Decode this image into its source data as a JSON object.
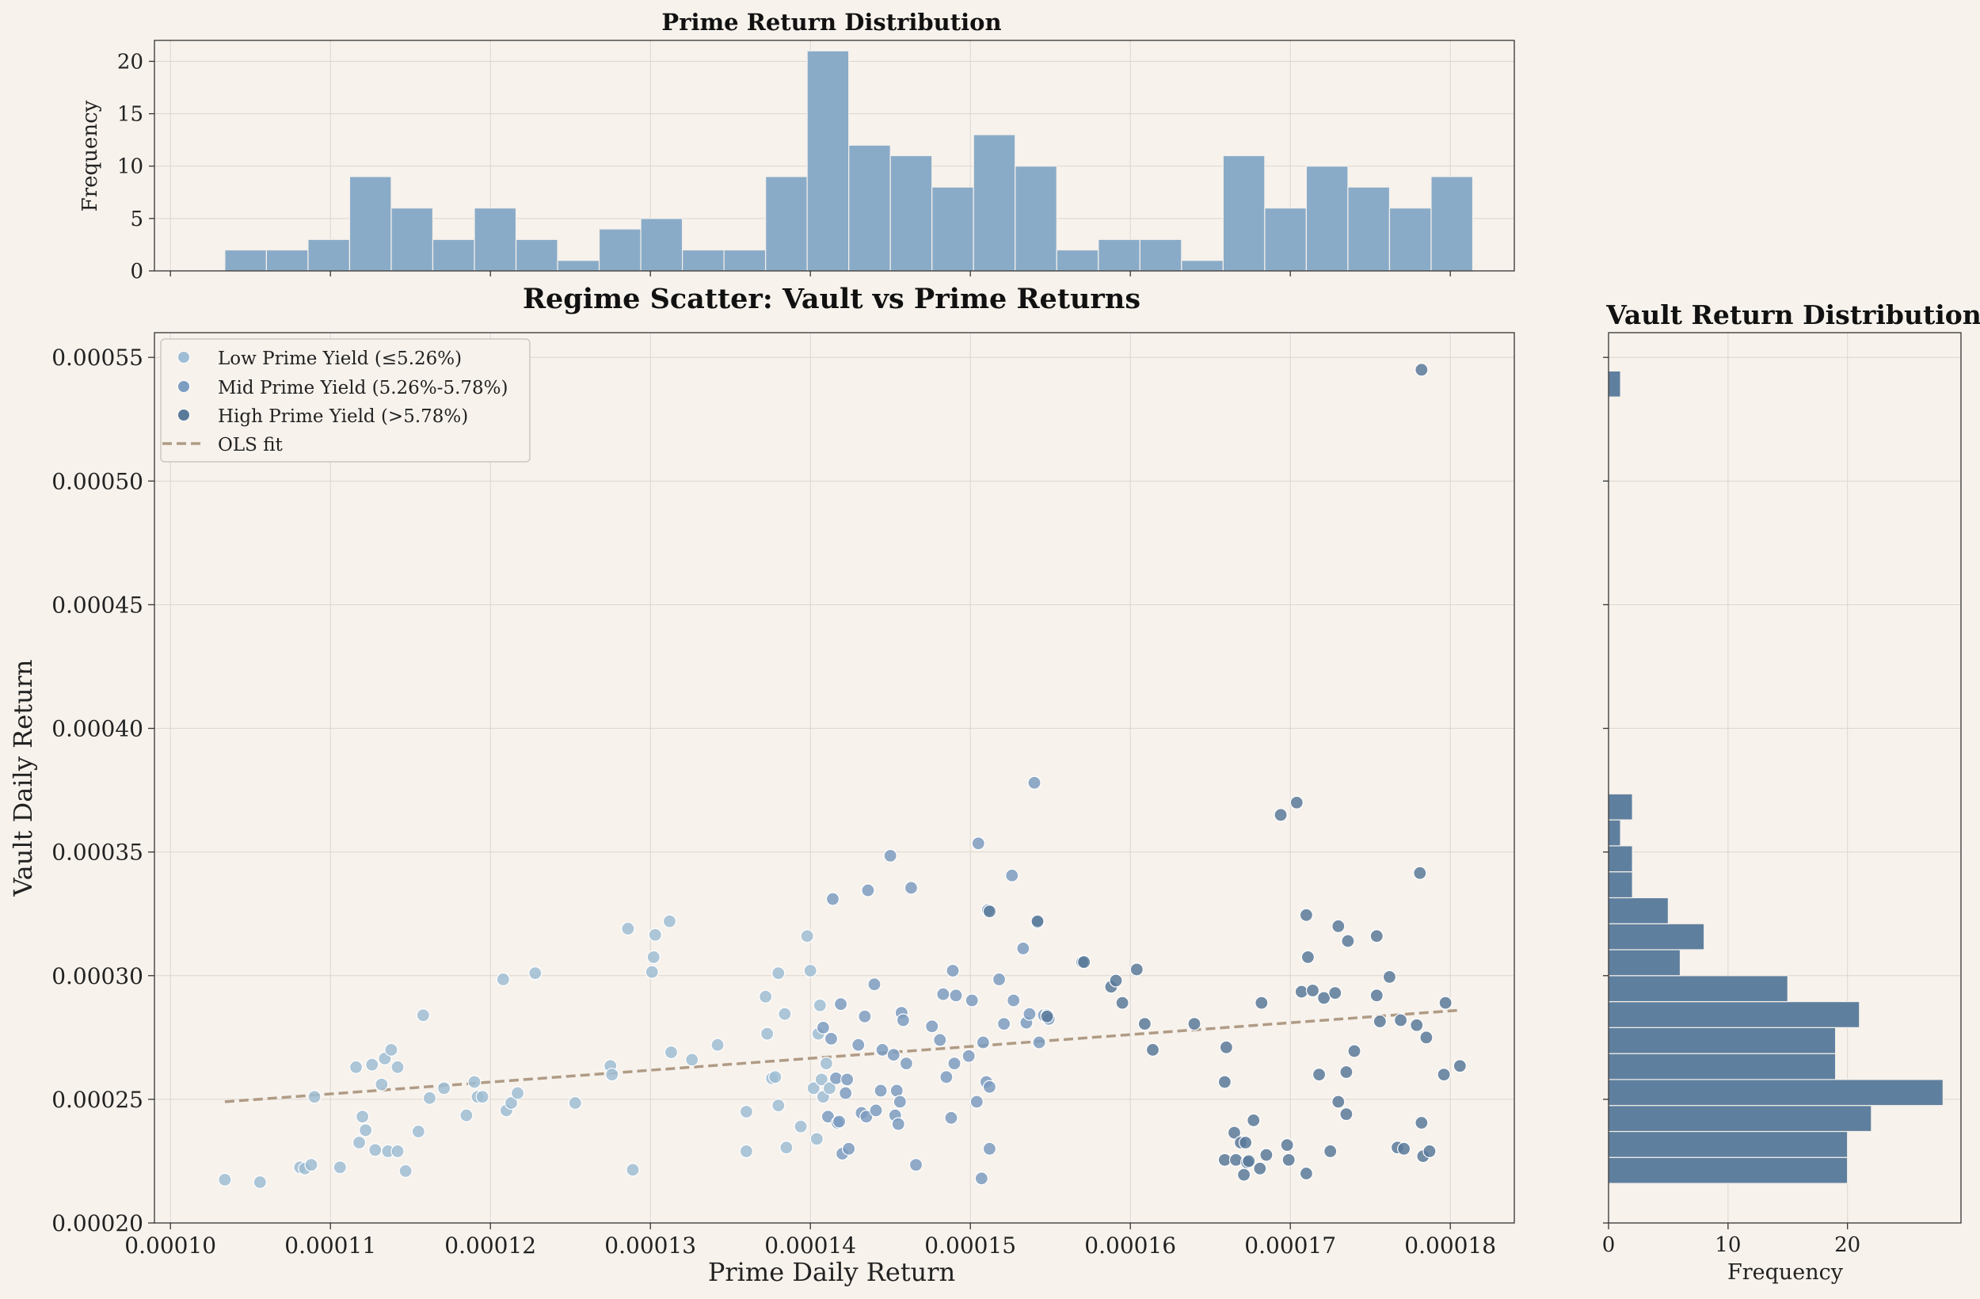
{
  "colors": {
    "background": "#f7f2ec",
    "hist_fill": "#8aabc8",
    "vault_hist_fill": "#5f7f9e",
    "low": "#9fbdd4",
    "mid": "#7c9cc0",
    "high": "#5a7a9a",
    "ols": "#b09b85",
    "grid": "#ddd6cf"
  },
  "chart_data": [
    {
      "type": "histogram",
      "id": "prime_hist",
      "title": "Prime Return Distribution",
      "xlabel": "",
      "ylabel": "Frequency",
      "xlim": [
        9.9e-05,
        0.000184
      ],
      "ylim": [
        0,
        22
      ],
      "yticks": [
        "0",
        "5",
        "10",
        "15",
        "20"
      ],
      "bin_start": 0.0001034,
      "bin_width": 2.6e-06,
      "counts": [
        2,
        2,
        3,
        9,
        6,
        3,
        6,
        3,
        1,
        4,
        5,
        2,
        2,
        9,
        21,
        12,
        11,
        8,
        13,
        10,
        2,
        3,
        3,
        1,
        11,
        6,
        10,
        8,
        6,
        9
      ]
    },
    {
      "type": "scatter",
      "id": "regime_scatter",
      "title": "Regime Scatter: Vault vs Prime Returns",
      "xlabel": "Prime Daily Return",
      "ylabel": "Vault Daily Return",
      "xlim": [
        9.9e-05,
        0.000184
      ],
      "ylim": [
        0.0002,
        0.00056
      ],
      "xticks": [
        "0.00010",
        "0.00011",
        "0.00012",
        "0.00013",
        "0.00014",
        "0.00015",
        "0.00016",
        "0.00017",
        "0.00018"
      ],
      "yticks": [
        "0.00020",
        "0.00025",
        "0.00030",
        "0.00035",
        "0.00040",
        "0.00045",
        "0.00050",
        "0.00055"
      ],
      "legend_position": "upper-left",
      "legend": [
        {
          "key": "low",
          "label": "Low Prime Yield (≤5.26%)"
        },
        {
          "key": "mid",
          "label": "Mid Prime Yield (5.26%-5.78%)"
        },
        {
          "key": "high",
          "label": "High Prime Yield (>5.78%)"
        },
        {
          "key": "ols",
          "label": "OLS fit"
        }
      ],
      "ols_fit": {
        "x": [
          0.0001034,
          0.0001805
        ],
        "y": [
          0.000249,
          0.000286
        ]
      },
      "series": [
        {
          "name": "Low Prime Yield (≤5.26%)",
          "key": "low",
          "points": [
            [
              0.0001034,
              0.0002175
            ],
            [
              0.0001056,
              0.0002165
            ],
            [
              0.0001081,
              0.0002225
            ],
            [
              0.0001084,
              0.000222
            ],
            [
              0.0001088,
              0.0002235
            ],
            [
              0.000109,
              0.000251
            ],
            [
              0.0001106,
              0.0002225
            ],
            [
              0.0001116,
              0.000263
            ],
            [
              0.0001118,
              0.0002325
            ],
            [
              0.000112,
              0.000243
            ],
            [
              0.0001122,
              0.0002375
            ],
            [
              0.0001126,
              0.000264
            ],
            [
              0.0001128,
              0.0002295
            ],
            [
              0.0001132,
              0.000256
            ],
            [
              0.0001134,
              0.0002665
            ],
            [
              0.0001136,
              0.000229
            ],
            [
              0.0001138,
              0.00027
            ],
            [
              0.0001142,
              0.000263
            ],
            [
              0.0001142,
              0.000229
            ],
            [
              0.0001147,
              0.000221
            ],
            [
              0.0001155,
              0.000237
            ],
            [
              0.0001158,
              0.000284
            ],
            [
              0.0001162,
              0.0002505
            ],
            [
              0.0001171,
              0.0002545
            ],
            [
              0.0001185,
              0.0002435
            ],
            [
              0.000119,
              0.000257
            ],
            [
              0.0001192,
              0.000251
            ],
            [
              0.0001195,
              0.000251
            ],
            [
              0.0001208,
              0.0002985
            ],
            [
              0.000121,
              0.0002455
            ],
            [
              0.0001213,
              0.0002485
            ],
            [
              0.0001217,
              0.0002525
            ],
            [
              0.0001228,
              0.000301
            ],
            [
              0.0001253,
              0.0002485
            ],
            [
              0.0001275,
              0.0002635
            ],
            [
              0.0001276,
              0.00026
            ],
            [
              0.0001286,
              0.000319
            ],
            [
              0.0001289,
              0.0002215
            ],
            [
              0.0001301,
              0.0003015
            ],
            [
              0.0001302,
              0.0003075
            ],
            [
              0.0001303,
              0.0003165
            ],
            [
              0.0001312,
              0.000322
            ],
            [
              0.0001313,
              0.000269
            ],
            [
              0.0001326,
              0.000266
            ],
            [
              0.0001342,
              0.000272
            ],
            [
              0.000136,
              0.000229
            ],
            [
              0.000136,
              0.000245
            ],
            [
              0.0001372,
              0.0002915
            ],
            [
              0.0001373,
              0.0002765
            ],
            [
              0.0001376,
              0.0002585
            ],
            [
              0.0001378,
              0.000259
            ],
            [
              0.000138,
              0.0002475
            ],
            [
              0.000138,
              0.000301
            ],
            [
              0.0001384,
              0.0002845
            ],
            [
              0.0001385,
              0.0002305
            ],
            [
              0.0001394,
              0.000239
            ],
            [
              0.0001398,
              0.000316
            ],
            [
              0.00014,
              0.000302
            ],
            [
              0.0001402,
              0.0002545
            ],
            [
              0.0001404,
              0.000234
            ],
            [
              0.0001405,
              0.0002765
            ],
            [
              0.0001406,
              0.000288
            ],
            [
              0.0001407,
              0.000258
            ],
            [
              0.0001408,
              0.000251
            ],
            [
              0.000141,
              0.0002645
            ],
            [
              0.0001412,
              0.0002545
            ]
          ]
        },
        {
          "name": "Mid Prime Yield (5.26%-5.78%)",
          "key": "mid",
          "points": [
            [
              0.0001408,
              0.000279
            ],
            [
              0.0001411,
              0.000243
            ],
            [
              0.0001413,
              0.0002745
            ],
            [
              0.0001414,
              0.000331
            ],
            [
              0.0001416,
              0.0002585
            ],
            [
              0.0001417,
              0.0002405
            ],
            [
              0.0001418,
              0.000241
            ],
            [
              0.0001419,
              0.0002885
            ],
            [
              0.000142,
              0.000228
            ],
            [
              0.0001422,
              0.0002525
            ],
            [
              0.0001423,
              0.000258
            ],
            [
              0.0001424,
              0.00023
            ],
            [
              0.000143,
              0.000272
            ],
            [
              0.0001432,
              0.0002445
            ],
            [
              0.0001434,
              0.0002835
            ],
            [
              0.0001435,
              0.000243
            ],
            [
              0.0001436,
              0.0003345
            ],
            [
              0.000144,
              0.0002965
            ],
            [
              0.0001441,
              0.0002455
            ],
            [
              0.0001444,
              0.0002535
            ],
            [
              0.0001445,
              0.00027
            ],
            [
              0.000145,
              0.0003485
            ],
            [
              0.0001452,
              0.000268
            ],
            [
              0.0001453,
              0.0002435
            ],
            [
              0.0001454,
              0.0002535
            ],
            [
              0.0001455,
              0.00024
            ],
            [
              0.0001456,
              0.000249
            ],
            [
              0.0001457,
              0.000285
            ],
            [
              0.0001458,
              0.000282
            ],
            [
              0.000146,
              0.0002645
            ],
            [
              0.0001463,
              0.0003355
            ],
            [
              0.0001466,
              0.0002235
            ],
            [
              0.0001476,
              0.0002795
            ],
            [
              0.0001481,
              0.000274
            ],
            [
              0.0001483,
              0.0002925
            ],
            [
              0.0001485,
              0.000259
            ],
            [
              0.0001488,
              0.0002425
            ],
            [
              0.0001489,
              0.000302
            ],
            [
              0.000149,
              0.0002645
            ],
            [
              0.0001491,
              0.000292
            ],
            [
              0.0001499,
              0.0002675
            ],
            [
              0.0001501,
              0.00029
            ],
            [
              0.0001504,
              0.000249
            ],
            [
              0.0001505,
              0.0003535
            ],
            [
              0.0001507,
              0.000218
            ],
            [
              0.0001508,
              0.000273
            ],
            [
              0.000151,
              0.000257
            ],
            [
              0.0001511,
              0.0003265
            ],
            [
              0.0001512,
              0.000255
            ],
            [
              0.0001512,
              0.00023
            ],
            [
              0.0001518,
              0.0002985
            ],
            [
              0.0001521,
              0.0002805
            ],
            [
              0.0001526,
              0.0003405
            ],
            [
              0.0001527,
              0.00029
            ],
            [
              0.0001533,
              0.000311
            ],
            [
              0.0001535,
              0.000281
            ],
            [
              0.0001537,
              0.0002845
            ],
            [
              0.000154,
              0.000378
            ],
            [
              0.0001542,
              0.0003215
            ],
            [
              0.0001543,
              0.000273
            ],
            [
              0.0001546,
              0.000284
            ],
            [
              0.0001548,
              0.000284
            ],
            [
              0.0001549,
              0.0002825
            ]
          ]
        },
        {
          "name": "High Prime Yield (>5.78%)",
          "key": "high",
          "points": [
            [
              0.0001512,
              0.000326
            ],
            [
              0.0001542,
              0.000322
            ],
            [
              0.0001548,
              0.0002835
            ],
            [
              0.000157,
              0.0003055
            ],
            [
              0.0001571,
              0.0003055
            ],
            [
              0.0001588,
              0.0002955
            ],
            [
              0.0001591,
              0.000298
            ],
            [
              0.0001595,
              0.000289
            ],
            [
              0.0001604,
              0.0003025
            ],
            [
              0.0001609,
              0.0002805
            ],
            [
              0.0001614,
              0.00027
            ],
            [
              0.000164,
              0.0002805
            ],
            [
              0.0001659,
              0.000257
            ],
            [
              0.0001659,
              0.0002255
            ],
            [
              0.000166,
              0.000271
            ],
            [
              0.0001665,
              0.0002365
            ],
            [
              0.0001666,
              0.0002255
            ],
            [
              0.0001669,
              0.0002325
            ],
            [
              0.0001671,
              0.0002195
            ],
            [
              0.0001672,
              0.0002325
            ],
            [
              0.0001673,
              0.0002245
            ],
            [
              0.0001674,
              0.000225
            ],
            [
              0.0001677,
              0.0002415
            ],
            [
              0.0001681,
              0.000222
            ],
            [
              0.0001682,
              0.000289
            ],
            [
              0.0001685,
              0.0002275
            ],
            [
              0.0001694,
              0.000365
            ],
            [
              0.0001698,
              0.0002315
            ],
            [
              0.0001699,
              0.0002255
            ],
            [
              0.0001704,
              0.00037
            ],
            [
              0.0001707,
              0.0002935
            ],
            [
              0.000171,
              0.0003245
            ],
            [
              0.000171,
              0.00022
            ],
            [
              0.0001711,
              0.0003075
            ],
            [
              0.0001714,
              0.000294
            ],
            [
              0.0001718,
              0.00026
            ],
            [
              0.0001721,
              0.000291
            ],
            [
              0.0001725,
              0.000229
            ],
            [
              0.0001728,
              0.000293
            ],
            [
              0.000173,
              0.00032
            ],
            [
              0.000173,
              0.000249
            ],
            [
              0.0001735,
              0.000244
            ],
            [
              0.0001736,
              0.000314
            ],
            [
              0.0001735,
              0.000261
            ],
            [
              0.000174,
              0.0002695
            ],
            [
              0.0001754,
              0.000316
            ],
            [
              0.0001754,
              0.000292
            ],
            [
              0.0001756,
              0.0002815
            ],
            [
              0.0001762,
              0.0002995
            ],
            [
              0.0001767,
              0.0002305
            ],
            [
              0.0001769,
              0.000282
            ],
            [
              0.0001771,
              0.00023
            ],
            [
              0.0001779,
              0.00028
            ],
            [
              0.0001781,
              0.0003415
            ],
            [
              0.0001782,
              0.000545
            ],
            [
              0.0001782,
              0.0002405
            ],
            [
              0.0001783,
              0.000227
            ],
            [
              0.0001785,
              0.000275
            ],
            [
              0.0001787,
              0.000229
            ],
            [
              0.0001796,
              0.00026
            ],
            [
              0.0001797,
              0.000289
            ],
            [
              0.0001806,
              0.0002635
            ]
          ]
        }
      ]
    },
    {
      "type": "histogram-horizontal",
      "id": "vault_hist",
      "title": "Vault Return Distribution",
      "xlabel": "Frequency",
      "xlim": [
        0,
        29.5
      ],
      "xticks": [
        "0",
        "10",
        "20"
      ],
      "bins": [
        [
          0.000216,
          0.0002265,
          20
        ],
        [
          0.0002265,
          0.000237,
          20
        ],
        [
          0.000237,
          0.0002475,
          22
        ],
        [
          0.0002475,
          0.000258,
          28
        ],
        [
          0.000258,
          0.0002685,
          19
        ],
        [
          0.0002685,
          0.000279,
          19
        ],
        [
          0.000279,
          0.0002895,
          21
        ],
        [
          0.0002895,
          0.0003,
          15
        ],
        [
          0.0003,
          0.0003105,
          6
        ],
        [
          0.0003105,
          0.000321,
          8
        ],
        [
          0.000321,
          0.0003315,
          5
        ],
        [
          0.0003315,
          0.000342,
          2
        ],
        [
          0.000342,
          0.0003525,
          2
        ],
        [
          0.0003525,
          0.000363,
          1
        ],
        [
          0.000363,
          0.0003735,
          2
        ],
        [
          0.000534,
          0.0005445,
          1
        ]
      ]
    }
  ]
}
